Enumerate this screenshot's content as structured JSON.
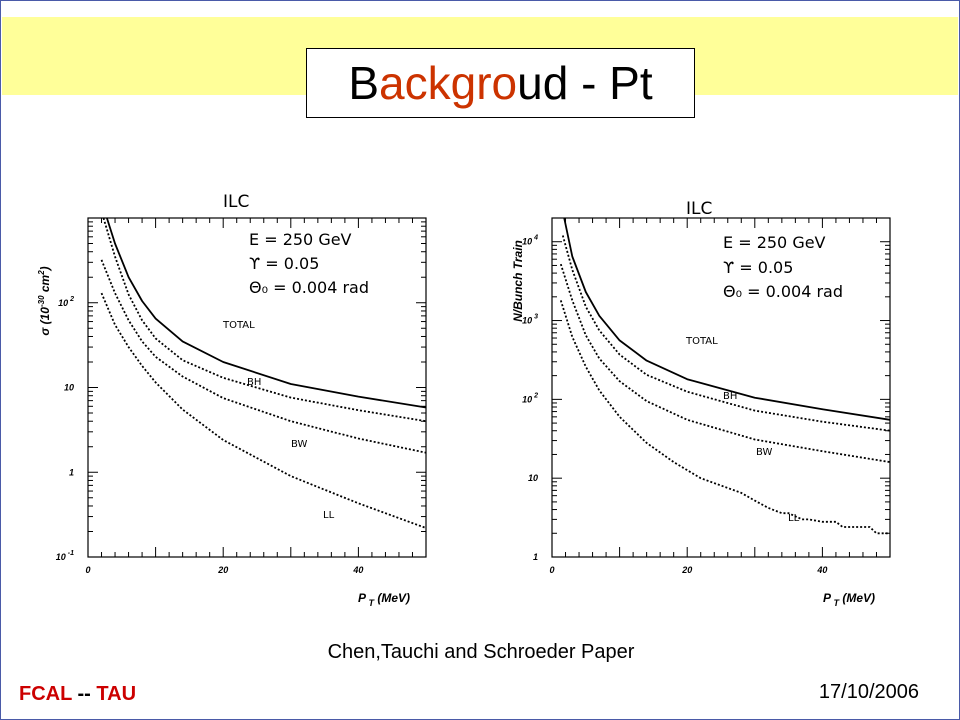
{
  "slide": {
    "title": "Backgroud - Pt",
    "title_parts": [
      {
        "text": "B",
        "accent": false
      },
      {
        "text": "ackgro",
        "accent": true
      },
      {
        "text": "ud - Pt",
        "accent": false
      }
    ],
    "caption": "Chen,Tauchi and Schroeder Paper",
    "footer_left": {
      "part1": "FCAL",
      "sep": " --",
      "part2": " TAU"
    },
    "date": "17/10/2006",
    "colors": {
      "banner": "#ffff99",
      "accent": "#cc3300",
      "footer": "#cc0000",
      "frame": "#4a5aa8"
    }
  },
  "chart_data": [
    {
      "type": "line",
      "title": "ILC",
      "xlabel": "P T (MeV)",
      "ylabel": "σ (10-30 cm2)",
      "xlim": [
        0,
        50
      ],
      "ylim": [
        0.1,
        1000
      ],
      "y_log": true,
      "xticks": [
        "0",
        "20",
        "40"
      ],
      "yticks": [
        {
          "value": 0.1,
          "base": "10",
          "exp": "-1"
        },
        {
          "value": 1,
          "base": "1",
          "exp": ""
        },
        {
          "value": 10,
          "base": "10",
          "exp": ""
        },
        {
          "value": 100,
          "base": "10",
          "exp": "2"
        }
      ],
      "annotations": [
        "E = 250 GeV",
        "ϒ = 0.05",
        "Θ₀ = 0.004 rad"
      ],
      "series": [
        {
          "name": "TOTAL",
          "style": "solid",
          "x": [
            2.8,
            4,
            6,
            8,
            10,
            14,
            20,
            30,
            40,
            50
          ],
          "y": [
            1000,
            500,
            200,
            105,
            65,
            35,
            20,
            11,
            7.8,
            5.8
          ]
        },
        {
          "name": "BH",
          "style": "dotted",
          "x": [
            2.3,
            4,
            6,
            8,
            10,
            14,
            20,
            30,
            40,
            50
          ],
          "y": [
            1000,
            350,
            125,
            62,
            38,
            21,
            13,
            7.6,
            5.4,
            4.0
          ]
        },
        {
          "name": "BW",
          "style": "dotted",
          "x": [
            2,
            4,
            6,
            8,
            10,
            14,
            20,
            30,
            40,
            50
          ],
          "y": [
            320,
            130,
            62,
            35,
            23,
            13.5,
            7.5,
            4.0,
            2.5,
            1.7
          ]
        },
        {
          "name": "LL",
          "style": "dotted",
          "x": [
            2,
            4,
            6,
            8,
            10,
            14,
            20,
            30,
            40,
            50
          ],
          "y": [
            130,
            55,
            30,
            18,
            11.5,
            5.5,
            2.4,
            0.9,
            0.43,
            0.22
          ]
        }
      ]
    },
    {
      "type": "line",
      "title": "ILC",
      "xlabel": "P T (MeV)",
      "ylabel": "N/Bunch Train",
      "xlim": [
        0,
        50
      ],
      "ylim": [
        1,
        20000
      ],
      "y_log": true,
      "xticks": [
        "0",
        "20",
        "40"
      ],
      "yticks": [
        {
          "value": 1,
          "base": "1",
          "exp": ""
        },
        {
          "value": 10,
          "base": "10",
          "exp": ""
        },
        {
          "value": 100,
          "base": "10",
          "exp": "2"
        },
        {
          "value": 1000,
          "base": "10",
          "exp": "3"
        },
        {
          "value": 10000,
          "base": "10",
          "exp": "4"
        }
      ],
      "annotations": [
        "E = 250 GeV",
        "ϒ = 0.05",
        "Θ₀ = 0.004 rad"
      ],
      "series": [
        {
          "name": "TOTAL",
          "style": "solid",
          "x": [
            1.8,
            3,
            5,
            7,
            10,
            14,
            20,
            30,
            40,
            50
          ],
          "y": [
            20000,
            6500,
            2300,
            1150,
            560,
            310,
            180,
            105,
            75,
            55
          ]
        },
        {
          "name": "BH",
          "style": "dotted",
          "x": [
            1.6,
            3,
            5,
            7,
            10,
            14,
            20,
            30,
            40,
            50
          ],
          "y": [
            12000,
            4400,
            1500,
            750,
            370,
            205,
            125,
            72,
            52,
            40
          ]
        },
        {
          "name": "BW",
          "style": "dotted",
          "x": [
            1.3,
            3,
            5,
            7,
            10,
            14,
            20,
            30,
            40,
            50
          ],
          "y": [
            5200,
            1800,
            650,
            330,
            170,
            95,
            55,
            31,
            22,
            16
          ]
        },
        {
          "name": "LL",
          "style": "dotted",
          "x": [
            1.3,
            3,
            5,
            7,
            10,
            14,
            18,
            22,
            26,
            28,
            30,
            32,
            34,
            35,
            37,
            38,
            40,
            42,
            43,
            45,
            47,
            48,
            50
          ],
          "y": [
            1800,
            620,
            260,
            130,
            60,
            28,
            16,
            10,
            7.5,
            6.5,
            5.2,
            4.2,
            3.6,
            3.6,
            3.0,
            3.0,
            2.8,
            2.8,
            2.4,
            2.4,
            2.4,
            2.0,
            2.0
          ]
        }
      ]
    }
  ]
}
